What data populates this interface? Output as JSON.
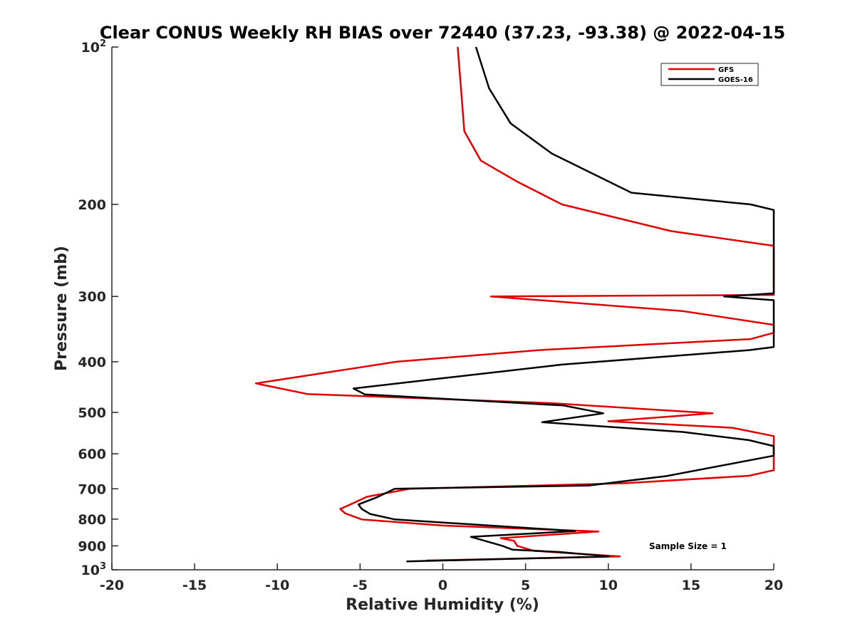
{
  "chart_data": {
    "type": "line",
    "title": "Clear CONUS Weekly RH BIAS over 72440 (37.23, -93.38) @ 2022-04-15",
    "xlabel": "Relative Humidity (%)",
    "ylabel": "Pressure (mb)",
    "xlim": [
      -20,
      20
    ],
    "ylim": [
      100,
      1000
    ],
    "y_scale": "log",
    "y_reversed": true,
    "x_ticks": [
      "-20",
      "-15",
      "-10",
      "-5",
      "0",
      "5",
      "10",
      "15",
      "20"
    ],
    "y_ticks": [
      {
        "value": 100,
        "base": "10",
        "exp": "2"
      },
      {
        "value": 200,
        "label": "200"
      },
      {
        "value": 300,
        "label": "300"
      },
      {
        "value": 400,
        "label": "400"
      },
      {
        "value": 500,
        "label": "500"
      },
      {
        "value": 600,
        "label": "600"
      },
      {
        "value": 700,
        "label": "700"
      },
      {
        "value": 800,
        "label": "800"
      },
      {
        "value": 900,
        "label": "900"
      },
      {
        "value": 1000,
        "base": "10",
        "exp": "3"
      }
    ],
    "grid": false,
    "legend_position": "top-right",
    "series": [
      {
        "name": "GFS",
        "color": "#e00000",
        "points": [
          [
            0.9,
            100
          ],
          [
            1.1,
            120
          ],
          [
            1.3,
            145
          ],
          [
            2.3,
            165
          ],
          [
            4.5,
            181
          ],
          [
            7.2,
            200
          ],
          [
            13.8,
            225
          ],
          [
            20.0,
            240
          ],
          [
            20.0,
            298
          ],
          [
            2.9,
            300
          ],
          [
            14.5,
            320
          ],
          [
            20.0,
            340
          ],
          [
            20.0,
            352
          ],
          [
            18.6,
            362
          ],
          [
            5.8,
            380
          ],
          [
            -2.8,
            400
          ],
          [
            -11.3,
            440
          ],
          [
            -8.2,
            461
          ],
          [
            6.5,
            480
          ],
          [
            16.3,
            502
          ],
          [
            10.0,
            520
          ],
          [
            17.5,
            535
          ],
          [
            20.0,
            555
          ],
          [
            20.0,
            645
          ],
          [
            18.5,
            661
          ],
          [
            11.0,
            683
          ],
          [
            -2.0,
            700
          ],
          [
            -4.6,
            725
          ],
          [
            -5.3,
            743
          ],
          [
            -6.2,
            765
          ],
          [
            -5.9,
            780
          ],
          [
            -4.9,
            801
          ],
          [
            0.0,
            823
          ],
          [
            9.4,
            845
          ],
          [
            3.5,
            870
          ],
          [
            4.3,
            880
          ],
          [
            4.5,
            900
          ],
          [
            5.5,
            920
          ],
          [
            10.7,
            943
          ],
          [
            -1.0,
            960
          ]
        ]
      },
      {
        "name": "GOES-16",
        "color": "#000000",
        "points": [
          [
            2.0,
            100
          ],
          [
            2.8,
            120
          ],
          [
            4.1,
            140
          ],
          [
            6.6,
            160
          ],
          [
            11.4,
            190
          ],
          [
            18.6,
            200
          ],
          [
            20.0,
            205
          ],
          [
            20.0,
            296
          ],
          [
            17.0,
            300
          ],
          [
            20.0,
            305
          ],
          [
            20.0,
            375
          ],
          [
            18.5,
            380
          ],
          [
            7.2,
            405
          ],
          [
            0.0,
            430
          ],
          [
            -5.4,
            450
          ],
          [
            -4.7,
            462
          ],
          [
            7.3,
            485
          ],
          [
            9.7,
            502
          ],
          [
            6.0,
            522
          ],
          [
            14.5,
            545
          ],
          [
            18.5,
            565
          ],
          [
            20.0,
            580
          ],
          [
            20.0,
            605
          ],
          [
            13.5,
            662
          ],
          [
            8.8,
            690
          ],
          [
            -2.9,
            700
          ],
          [
            -4.0,
            727
          ],
          [
            -5.1,
            750
          ],
          [
            -4.9,
            765
          ],
          [
            -4.4,
            782
          ],
          [
            -2.9,
            801
          ],
          [
            8.0,
            843
          ],
          [
            1.7,
            865
          ],
          [
            3.6,
            900
          ],
          [
            4.2,
            915
          ],
          [
            7.1,
            925
          ],
          [
            10.0,
            943
          ],
          [
            -2.2,
            964
          ]
        ]
      }
    ],
    "annotation": "Sample Size = 1"
  }
}
